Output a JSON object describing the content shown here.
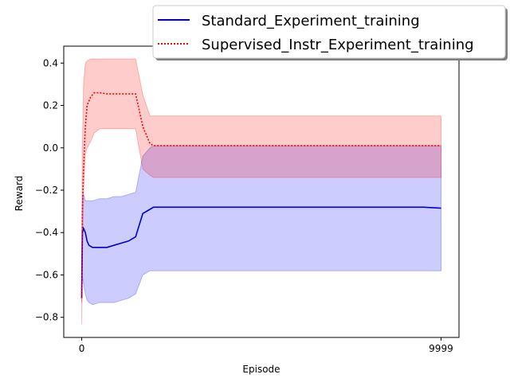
{
  "chart_data": {
    "type": "line",
    "title": "",
    "xlabel": "Episode",
    "ylabel": "Reward",
    "xlim": [
      -500,
      10499
    ],
    "ylim": [
      -0.895,
      0.48
    ],
    "xticks": [
      "0",
      "9999"
    ],
    "yticks": [
      "−0.8",
      "−0.6",
      "−0.4",
      "−0.2",
      "0.0",
      "0.2",
      "0.4"
    ],
    "grid": false,
    "legend_position": "top-right, outside plot",
    "series": [
      {
        "name": "Standard_Experiment_training",
        "color": "#0000cc",
        "linestyle": "solid",
        "band_color": "#0000ff",
        "x": [
          0,
          20,
          50,
          100,
          150,
          200,
          300,
          500,
          700,
          900,
          1100,
          1300,
          1500,
          1700,
          1900,
          2000,
          2100,
          2200,
          2400,
          2800,
          3500,
          4500,
          5500,
          6500,
          7500,
          8500,
          9500,
          9999
        ],
        "mean": [
          -0.71,
          -0.4,
          -0.38,
          -0.4,
          -0.44,
          -0.46,
          -0.47,
          -0.47,
          -0.47,
          -0.46,
          -0.45,
          -0.44,
          -0.42,
          -0.31,
          -0.29,
          -0.28,
          -0.28,
          -0.28,
          -0.28,
          -0.28,
          -0.28,
          -0.28,
          -0.28,
          -0.28,
          -0.28,
          -0.28,
          -0.28,
          -0.285
        ],
        "lower": [
          -0.73,
          -0.61,
          -0.64,
          -0.69,
          -0.72,
          -0.73,
          -0.74,
          -0.73,
          -0.73,
          -0.73,
          -0.72,
          -0.71,
          -0.69,
          -0.6,
          -0.58,
          -0.58,
          -0.58,
          -0.58,
          -0.58,
          -0.58,
          -0.58,
          -0.58,
          -0.58,
          -0.58,
          -0.58,
          -0.58,
          -0.58,
          -0.58
        ],
        "upper": [
          -0.68,
          -0.23,
          -0.22,
          -0.25,
          -0.25,
          -0.25,
          -0.25,
          -0.24,
          -0.24,
          -0.23,
          -0.23,
          -0.22,
          -0.21,
          -0.04,
          -0.0,
          0.01,
          0.01,
          0.01,
          0.01,
          0.01,
          0.01,
          0.01,
          0.01,
          0.01,
          0.01,
          0.01,
          0.01,
          0.01
        ]
      },
      {
        "name": "Supervised_Instr_Experiment_training",
        "color": "#ff0000",
        "linestyle": "dotted",
        "band_color": "#ff0000",
        "x": [
          0,
          20,
          50,
          100,
          150,
          250,
          350,
          500,
          700,
          900,
          1100,
          1300,
          1500,
          1700,
          1900,
          2000,
          2200,
          2800,
          3500,
          4500,
          5500,
          6500,
          7500,
          8500,
          9500,
          9999
        ],
        "mean": [
          -0.71,
          -0.3,
          -0.1,
          0.1,
          0.2,
          0.24,
          0.26,
          0.26,
          0.255,
          0.255,
          0.255,
          0.255,
          0.255,
          0.1,
          0.02,
          0.01,
          0.01,
          0.01,
          0.01,
          0.01,
          0.01,
          0.01,
          0.01,
          0.01,
          0.01,
          0.01
        ],
        "lower": [
          -0.83,
          -0.55,
          -0.2,
          -0.03,
          0.0,
          0.03,
          0.07,
          0.09,
          0.09,
          0.09,
          0.09,
          0.09,
          0.09,
          -0.1,
          -0.13,
          -0.14,
          -0.14,
          -0.14,
          -0.14,
          -0.14,
          -0.14,
          -0.14,
          -0.14,
          -0.14,
          -0.14,
          -0.14
        ],
        "upper": [
          -0.6,
          0.0,
          0.3,
          0.4,
          0.41,
          0.42,
          0.42,
          0.42,
          0.42,
          0.42,
          0.42,
          0.42,
          0.42,
          0.25,
          0.15,
          0.15,
          0.15,
          0.15,
          0.15,
          0.15,
          0.15,
          0.15,
          0.15,
          0.15,
          0.15,
          0.15
        ]
      }
    ]
  }
}
